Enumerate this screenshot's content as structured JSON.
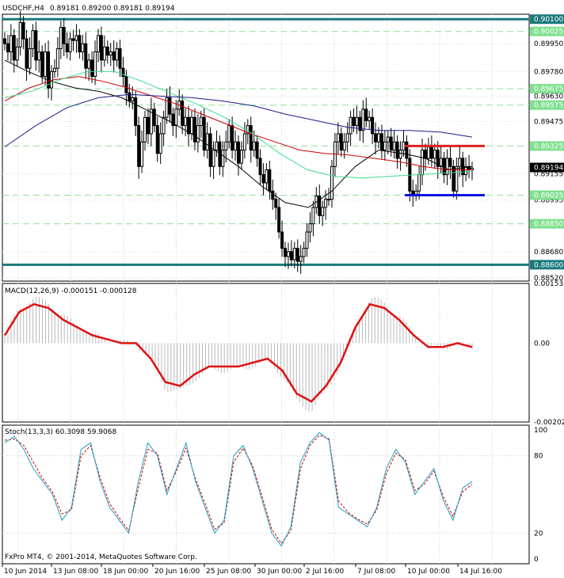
{
  "header": {
    "symbol": "USDCHF,H4",
    "quotes": "0.89181 0.89200 0.89181 0.89194"
  },
  "price_axis": {
    "ticks": [
      "0.89950",
      "0.89780",
      "0.89630",
      "0.89475",
      "0.89155",
      "0.88995",
      "0.88680",
      "0.88520"
    ],
    "tagged_levels": [
      {
        "label": "0.90100",
        "color": "#1b7a7c",
        "kind": "support-resistance"
      },
      {
        "label": "0.90025",
        "color": "#8fe0a0",
        "kind": "dashed"
      },
      {
        "label": "0.89675",
        "color": "#8fe0a0",
        "kind": "dashed"
      },
      {
        "label": "0.89575",
        "color": "#8fe0a0",
        "kind": "dashed"
      },
      {
        "label": "0.89325",
        "color": "#8fe0a0",
        "kind": "dashed"
      },
      {
        "label": "0.89025",
        "color": "#8fe0a0",
        "kind": "dashed"
      },
      {
        "label": "0.88850",
        "color": "#8fe0a0",
        "kind": "dashed"
      },
      {
        "label": "0.88600",
        "color": "#1b7a7c",
        "kind": "support-resistance"
      }
    ],
    "current_price": "0.89194"
  },
  "macd": {
    "label": "MACD(12,26,9) -0.000151 -0.000128",
    "ticks": [
      "0.001533",
      "0.00",
      "-0.002027"
    ]
  },
  "stoch": {
    "label": "Stoch(13,3,3) 60.3098 59.9068",
    "ticks": [
      "100",
      "80",
      "20",
      "0"
    ]
  },
  "copyright": "FxPro MT4, © 2001-2014, MetaQuotes Software Corp.",
  "time_axis": [
    "10 Jun 2014",
    "13 Jun 08:00",
    "18 Jun 00:00",
    "20 Jun 16:00",
    "25 Jun 08:00",
    "30 Jun 00:00",
    "2 Jul 16:00",
    "7 Jul 08:00",
    "10 Jul 00:00",
    "14 Jul 16:00"
  ],
  "colors": {
    "sr_line": "#1b7a7c",
    "fib_dashed": "#8fe0a0",
    "range_top": "#e02020",
    "range_bottom": "#1010e0",
    "ma_black": "#000000",
    "ma_red": "#cc0000",
    "ma_green": "#40d890",
    "ma_navy": "#1a1a8c",
    "macd_signal": "#e01010",
    "histogram": "#b8b8b8",
    "stoch_main": "#20a0c0",
    "stoch_signal": "#cc0000"
  },
  "chart_data": {
    "type": "candlestick",
    "symbol": "USDCHF",
    "timeframe": "H4",
    "ylim": [
      0.885,
      0.9013
    ],
    "range_box": {
      "top": 0.89325,
      "bottom": 0.89025
    },
    "close": [
      0.8995,
      0.899,
      0.9,
      0.8985,
      0.8993,
      0.9008,
      0.8998,
      0.898,
      0.8992,
      0.9003,
      0.8985,
      0.899,
      0.8975,
      0.899,
      0.8968,
      0.8978,
      0.898,
      0.8992,
      0.9005,
      0.8995,
      0.899,
      0.8998,
      0.8997,
      0.9,
      0.899,
      0.8995,
      0.898,
      0.8985,
      0.8975,
      0.899,
      0.9,
      0.8985,
      0.8993,
      0.8988,
      0.899,
      0.8985,
      0.8992,
      0.898,
      0.8975,
      0.8965,
      0.896,
      0.8962,
      0.8945,
      0.892,
      0.8935,
      0.895,
      0.894,
      0.8955,
      0.8945,
      0.8928,
      0.894,
      0.895,
      0.8962,
      0.8952,
      0.8945,
      0.8955,
      0.896,
      0.8945,
      0.895,
      0.894,
      0.895,
      0.8935,
      0.8945,
      0.895,
      0.893,
      0.894,
      0.892,
      0.893,
      0.8935,
      0.892,
      0.893,
      0.8935,
      0.8945,
      0.893,
      0.8935,
      0.8922,
      0.893,
      0.894,
      0.8945,
      0.893,
      0.8935,
      0.8925,
      0.8915,
      0.891,
      0.8918,
      0.8905,
      0.89,
      0.8895,
      0.888,
      0.887,
      0.8865,
      0.8868,
      0.8863,
      0.887,
      0.8862,
      0.8865,
      0.887,
      0.888,
      0.8885,
      0.8895,
      0.8902,
      0.889,
      0.8895,
      0.89,
      0.89,
      0.892,
      0.8935,
      0.894,
      0.893,
      0.8935,
      0.894,
      0.895,
      0.8945,
      0.895,
      0.8942,
      0.8955,
      0.8948,
      0.895,
      0.894,
      0.8935,
      0.894,
      0.893,
      0.8935,
      0.8938,
      0.893,
      0.8935,
      0.8925,
      0.893,
      0.8935,
      0.8925,
      0.8905,
      0.8903,
      0.8905,
      0.8915,
      0.893,
      0.8925,
      0.8932,
      0.8925,
      0.893,
      0.892,
      0.8925,
      0.8915,
      0.8925,
      0.892,
      0.8905,
      0.892,
      0.8925,
      0.8915,
      0.892,
      0.8918,
      0.8919
    ],
    "series": [
      {
        "name": "MA black",
        "values": [
          0.8985,
          0.8978,
          0.8972,
          0.8968,
          0.8966,
          0.8962,
          0.8955,
          0.8948,
          0.894,
          0.893,
          0.892,
          0.8908,
          0.8898,
          0.8895,
          0.8905,
          0.892,
          0.893,
          0.8928,
          0.8925,
          0.8918,
          0.892
        ]
      },
      {
        "name": "MA red",
        "values": [
          0.896,
          0.8968,
          0.8973,
          0.8975,
          0.8972,
          0.8968,
          0.8963,
          0.8958,
          0.8952,
          0.8946,
          0.894,
          0.8935,
          0.893,
          0.8928,
          0.8927,
          0.8925,
          0.8923,
          0.892,
          0.8918,
          0.8918
        ]
      },
      {
        "name": "MA green",
        "values": [
          0.8962,
          0.8966,
          0.8973,
          0.8978,
          0.8978,
          0.8972,
          0.8965,
          0.8958,
          0.895,
          0.894,
          0.8928,
          0.8918,
          0.8914,
          0.8913,
          0.8914,
          0.8915,
          0.8916,
          0.8917
        ]
      },
      {
        "name": "MA navy",
        "values": [
          0.8932,
          0.8945,
          0.8956,
          0.8962,
          0.8964,
          0.8963,
          0.8962,
          0.896,
          0.8957,
          0.8952,
          0.8948,
          0.8944,
          0.8942,
          0.8942,
          0.8941,
          0.8938
        ]
      }
    ],
    "macd_ylim": [
      -0.002027,
      0.001533
    ],
    "macd_signal": [
      0.0002,
      0.0008,
      0.001,
      0.0009,
      0.0006,
      0.0004,
      0.0002,
      0.0001,
      0.0,
      0.0,
      -0.0004,
      -0.001,
      -0.0011,
      -0.0008,
      -0.0006,
      -0.0006,
      -0.0006,
      -0.0005,
      -0.0004,
      -0.0007,
      -0.0013,
      -0.0015,
      -0.0011,
      -0.0005,
      0.0004,
      0.001,
      0.0009,
      0.0006,
      0.0002,
      -0.0001,
      -0.0001,
      0.0,
      -0.0001
    ],
    "stoch_main": [
      90,
      95,
      85,
      70,
      60,
      50,
      30,
      40,
      85,
      90,
      60,
      40,
      30,
      20,
      60,
      90,
      80,
      50,
      70,
      90,
      60,
      40,
      20,
      30,
      80,
      88,
      70,
      45,
      20,
      10,
      25,
      75,
      90,
      98,
      92,
      40,
      35,
      30,
      25,
      40,
      70,
      85,
      75,
      50,
      60,
      70,
      45,
      30,
      55,
      60
    ],
    "stoch_signal": [
      92,
      93,
      88,
      75,
      62,
      52,
      35,
      38,
      80,
      88,
      63,
      43,
      32,
      22,
      55,
      85,
      82,
      53,
      68,
      86,
      62,
      43,
      23,
      28,
      75,
      86,
      72,
      48,
      23,
      12,
      22,
      70,
      88,
      96,
      93,
      45,
      36,
      31,
      27,
      38,
      66,
      82,
      77,
      53,
      58,
      68,
      48,
      33,
      52,
      58
    ]
  }
}
